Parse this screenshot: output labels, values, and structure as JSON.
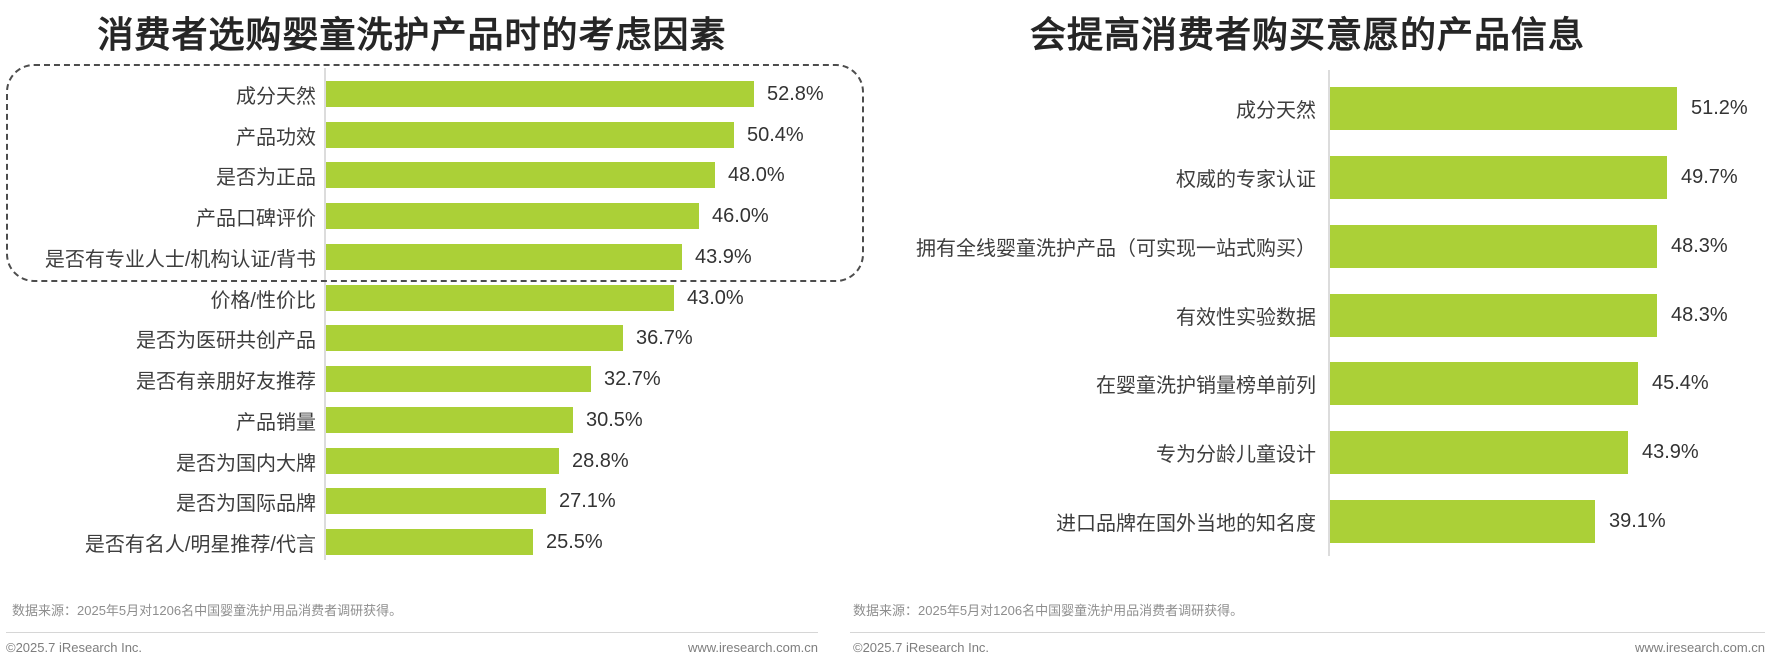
{
  "page": {
    "background": "#ffffff",
    "bar_color": "#abd037",
    "axis_color": "#dcdcdc",
    "highlight_border_color": "#4d4d4d"
  },
  "panels": [
    {
      "title": "消费者选购婴童洗护产品时的考虑因素",
      "source": "数据来源：2025年5月对1206名中国婴童洗护用品消费者调研获得。",
      "copyright": "©2025.7 iResearch Inc.",
      "website": "www.iresearch.com.cn"
    },
    {
      "title": "会提高消费者购买意愿的产品信息",
      "source": "数据来源：2025年5月对1206名中国婴童洗护用品消费者调研获得。",
      "copyright": "©2025.7 iResearch Inc.",
      "website": "www.iresearch.com.cn"
    }
  ],
  "chart_data": [
    {
      "type": "bar",
      "orientation": "horizontal",
      "title": "消费者选购婴童洗护产品时的考虑因素",
      "categories": [
        "成分天然",
        "产品功效",
        "是否为正品",
        "产品口碑评价",
        "是否有专业人士/机构认证/背书",
        "价格/性价比",
        "是否为医研共创产品",
        "是否有亲朋好友推荐",
        "产品销量",
        "是否为国内大牌",
        "是否为国际品牌",
        "是否有名人/明星推荐/代言"
      ],
      "values": [
        52.8,
        50.4,
        48.0,
        46.0,
        43.9,
        43.0,
        36.7,
        32.7,
        30.5,
        28.8,
        27.1,
        25.5
      ],
      "unit": "%",
      "value_labels": true,
      "xlim": [
        0,
        60
      ],
      "grid": false,
      "legend": "none",
      "bar_color": "#abd037",
      "annotations": [
        "top 5 factors enclosed in dashed rounded rectangle"
      ],
      "highlight_top_n": 5
    },
    {
      "type": "bar",
      "orientation": "horizontal",
      "title": "会提高消费者购买意愿的产品信息",
      "categories": [
        "成分天然",
        "权威的专家认证",
        "拥有全线婴童洗护产品（可实现一站式购买）",
        "有效性实验数据",
        "在婴童洗护销量榜单前列",
        "专为分龄儿童设计",
        "进口品牌在国外当地的知名度"
      ],
      "values": [
        51.2,
        49.7,
        48.3,
        48.3,
        45.4,
        43.9,
        39.1
      ],
      "unit": "%",
      "value_labels": true,
      "xlim": [
        0,
        60
      ],
      "grid": false,
      "legend": "none",
      "bar_color": "#abd037"
    }
  ]
}
